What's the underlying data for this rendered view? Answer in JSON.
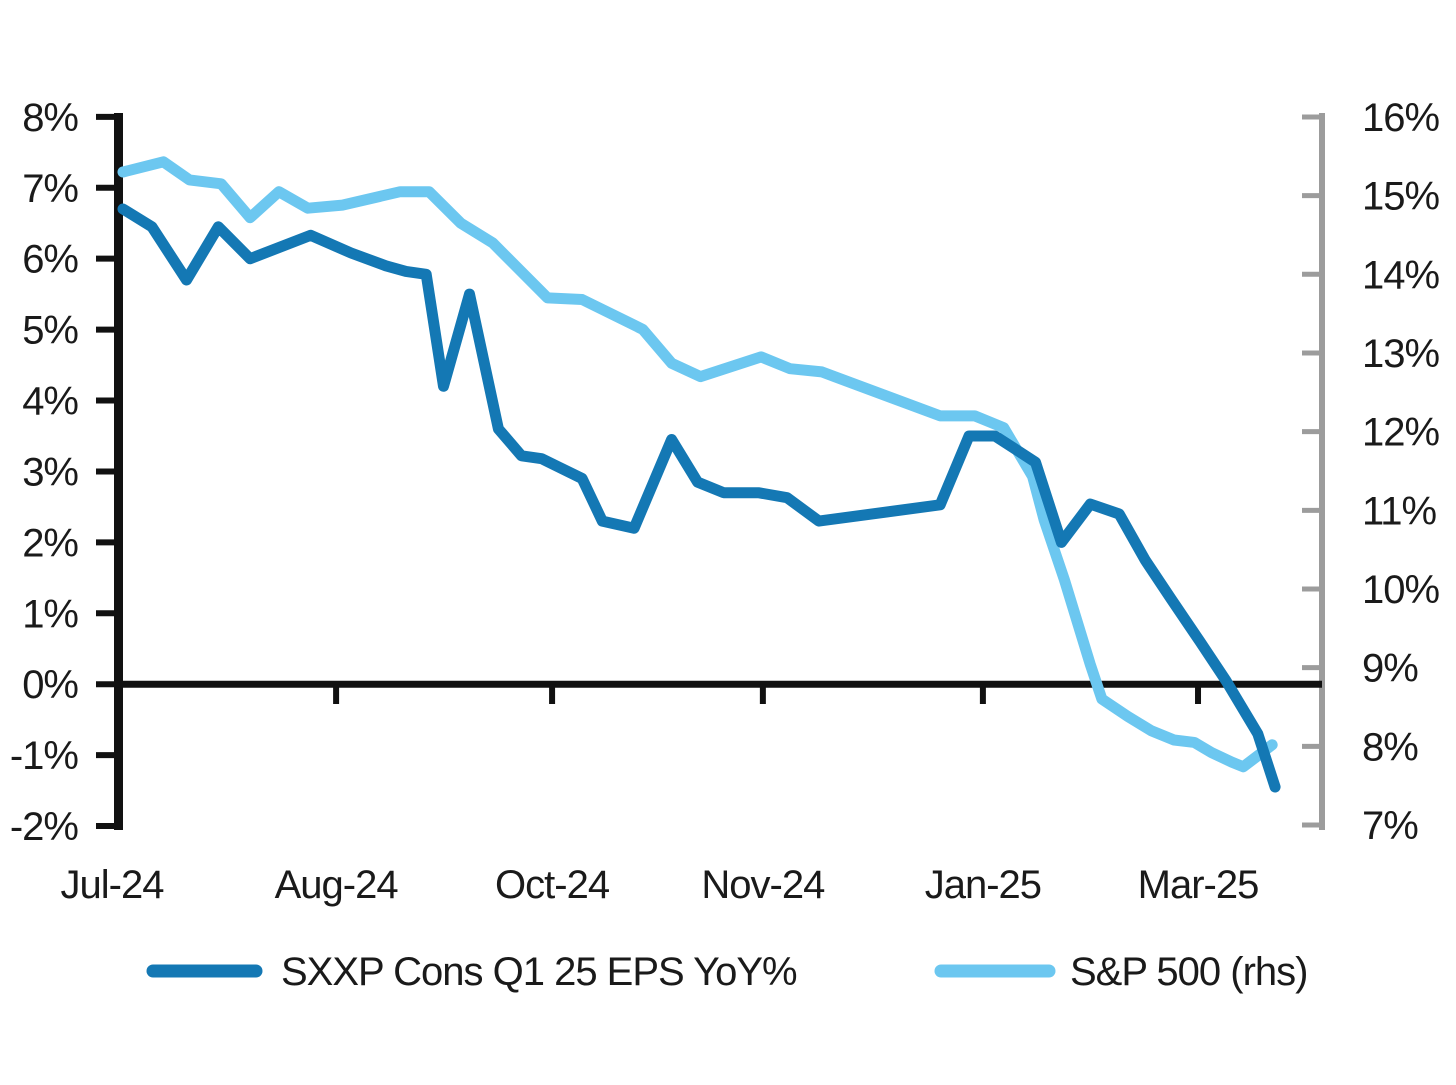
{
  "page": {
    "background": "#ffffff"
  },
  "chart_data": {
    "type": "line",
    "title": "",
    "x_unit": "weekly samples from Jul-2024 to mid-Apr-2025 (week index 0-40)",
    "grid": false,
    "x_tick_labels": [
      {
        "label": "Jul-24",
        "week": -0.38
      },
      {
        "label": "Aug-24",
        "week": 7.38
      },
      {
        "label": "Oct-24",
        "week": 14.86
      },
      {
        "label": "Nov-24",
        "week": 22.16
      },
      {
        "label": "Jan-25",
        "week": 29.78
      },
      {
        "label": "Mar-25",
        "week": 37.23
      }
    ],
    "x_subticks_weeks": [
      7.38,
      14.86,
      22.16,
      29.78,
      37.23
    ],
    "left_axis": {
      "min": -2,
      "max": 8,
      "step": 1,
      "tick_labels": [
        "8%",
        "7%",
        "6%",
        "5%",
        "4%",
        "3%",
        "2%",
        "1%",
        "0%",
        "-1%",
        "-2%"
      ],
      "color": "#111111"
    },
    "right_axis": {
      "min": 7,
      "max": 16,
      "step": 1,
      "tick_labels": [
        "16%",
        "15%",
        "14%",
        "13%",
        "12%",
        "11%",
        "10%",
        "9%",
        "8%",
        "7%"
      ],
      "color": "#9c9c9c"
    },
    "series": [
      {
        "name": "SXXP Cons Q1 25 EPS YoY%",
        "axis": "left",
        "color": "#1478b4",
        "points": [
          [
            0,
            6.7
          ],
          [
            1.0,
            6.45
          ],
          [
            2.2,
            5.7
          ],
          [
            3.3,
            6.45
          ],
          [
            4.4,
            6.0
          ],
          [
            6.5,
            6.33
          ],
          [
            7.9,
            6.08
          ],
          [
            9.1,
            5.9
          ],
          [
            9.8,
            5.82
          ],
          [
            10.5,
            5.78
          ],
          [
            11.1,
            4.2
          ],
          [
            12.0,
            5.5
          ],
          [
            13.0,
            3.6
          ],
          [
            13.8,
            3.22
          ],
          [
            14.5,
            3.18
          ],
          [
            15.1,
            3.06
          ],
          [
            15.9,
            2.9
          ],
          [
            16.6,
            2.3
          ],
          [
            17.7,
            2.2
          ],
          [
            19.0,
            3.45
          ],
          [
            19.9,
            2.85
          ],
          [
            20.8,
            2.7
          ],
          [
            22.0,
            2.7
          ],
          [
            23.0,
            2.63
          ],
          [
            24.1,
            2.3
          ],
          [
            28.3,
            2.53
          ],
          [
            29.3,
            3.5
          ],
          [
            30.2,
            3.5
          ],
          [
            31.6,
            3.13
          ],
          [
            32.5,
            2.0
          ],
          [
            33.5,
            2.54
          ],
          [
            34.5,
            2.4
          ],
          [
            35.4,
            1.75
          ],
          [
            36.3,
            1.2
          ],
          [
            37.3,
            0.6
          ],
          [
            38.2,
            0.05
          ],
          [
            39.3,
            -0.7
          ],
          [
            39.9,
            -1.45
          ]
        ]
      },
      {
        "name": "S&P 500 (rhs)",
        "axis": "right",
        "color": "#6cc7f0",
        "points": [
          [
            0,
            15.3
          ],
          [
            1.4,
            15.43
          ],
          [
            2.3,
            15.2
          ],
          [
            3.4,
            15.15
          ],
          [
            4.4,
            14.72
          ],
          [
            5.4,
            15.05
          ],
          [
            6.4,
            14.84
          ],
          [
            7.6,
            14.88
          ],
          [
            9.6,
            15.05
          ],
          [
            10.6,
            15.05
          ],
          [
            11.7,
            14.65
          ],
          [
            12.8,
            14.4
          ],
          [
            14.7,
            13.7
          ],
          [
            15.9,
            13.68
          ],
          [
            18.0,
            13.3
          ],
          [
            19.0,
            12.87
          ],
          [
            20.0,
            12.7
          ],
          [
            22.1,
            12.95
          ],
          [
            23.1,
            12.8
          ],
          [
            24.2,
            12.76
          ],
          [
            28.3,
            12.2
          ],
          [
            29.5,
            12.2
          ],
          [
            30.5,
            12.05
          ],
          [
            31.5,
            11.43
          ],
          [
            31.9,
            10.88
          ],
          [
            32.6,
            10.12
          ],
          [
            33.5,
            9.04
          ],
          [
            33.9,
            8.6
          ],
          [
            34.8,
            8.38
          ],
          [
            35.6,
            8.2
          ],
          [
            36.4,
            8.08
          ],
          [
            37.1,
            8.05
          ],
          [
            37.7,
            7.92
          ],
          [
            38.4,
            7.8
          ],
          [
            38.8,
            7.74
          ],
          [
            39.8,
            8.02
          ]
        ]
      }
    ],
    "legend": {
      "position": "bottom",
      "items": [
        "SXXP Cons Q1 25 EPS YoY%",
        "S&P 500 (rhs)"
      ]
    }
  }
}
